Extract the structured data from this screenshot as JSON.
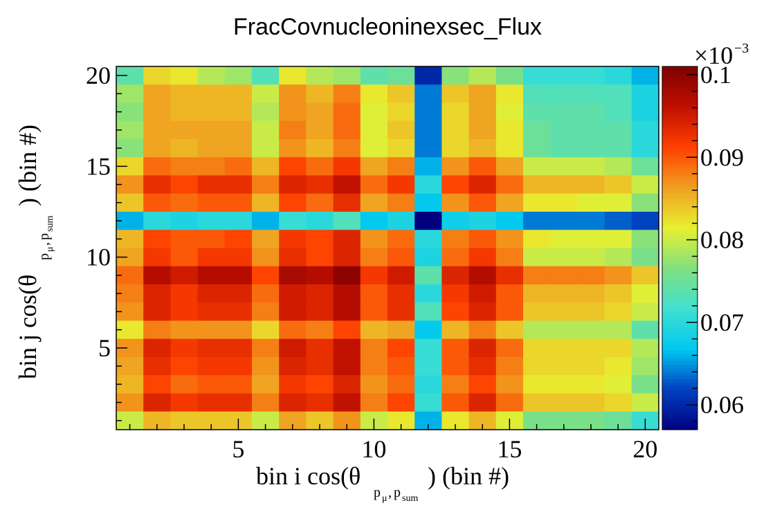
{
  "chart_data": {
    "type": "heatmap",
    "title": "FracCovnucleoninexsec_Flux",
    "xlabel": {
      "main": "bin i cos(θ",
      "sub": "p",
      "sub_mu": "μ",
      "sub_sep": ",",
      "sub2": "p",
      "sub2_sum": "sum",
      "tail": ") (bin #)"
    },
    "ylabel": {
      "main": "bin j cos(θ",
      "sub": "p",
      "sub_mu": "μ",
      "sub_sep": ",",
      "sub2": "p",
      "sub2_sum": "sum",
      "tail": ") (bin #)"
    },
    "x_range": [
      0.5,
      20.5
    ],
    "y_range": [
      0.5,
      20.5
    ],
    "x_ticks": [
      5,
      10,
      15,
      20
    ],
    "y_ticks": [
      5,
      10,
      15,
      20
    ],
    "z_range": [
      0.057,
      0.101
    ],
    "z_ticks": [
      0.06,
      0.07,
      0.08,
      0.09,
      0.1
    ],
    "z_tick_labels": [
      "0.06",
      "0.07",
      "0.08",
      "0.09",
      "0.1"
    ],
    "z_multiplier": "×10",
    "z_exponent": "−3",
    "colormap": [
      "#00007f",
      "#0040c0",
      "#00c8f0",
      "#40e0d0",
      "#80e080",
      "#e8f030",
      "#f0a020",
      "#ff4000",
      "#c01000",
      "#7f0000"
    ],
    "grid": false,
    "values": [
      [
        0.074,
        0.083,
        0.082,
        0.079,
        0.078,
        0.073,
        0.082,
        0.079,
        0.078,
        0.074,
        0.075,
        0.06,
        0.077,
        0.079,
        0.076,
        0.071,
        0.071,
        0.071,
        0.07,
        0.066
      ],
      [
        0.078,
        0.086,
        0.085,
        0.085,
        0.085,
        0.08,
        0.087,
        0.085,
        0.088,
        0.082,
        0.084,
        0.064,
        0.084,
        0.086,
        0.082,
        0.073,
        0.073,
        0.073,
        0.073,
        0.069
      ],
      [
        0.077,
        0.086,
        0.085,
        0.085,
        0.085,
        0.079,
        0.087,
        0.086,
        0.089,
        0.081,
        0.083,
        0.064,
        0.083,
        0.086,
        0.081,
        0.074,
        0.074,
        0.074,
        0.073,
        0.069
      ],
      [
        0.078,
        0.086,
        0.086,
        0.086,
        0.086,
        0.08,
        0.088,
        0.086,
        0.089,
        0.081,
        0.084,
        0.064,
        0.083,
        0.086,
        0.082,
        0.075,
        0.074,
        0.074,
        0.074,
        0.07
      ],
      [
        0.077,
        0.086,
        0.085,
        0.086,
        0.086,
        0.08,
        0.087,
        0.085,
        0.088,
        0.081,
        0.083,
        0.064,
        0.083,
        0.085,
        0.082,
        0.075,
        0.074,
        0.074,
        0.074,
        0.07
      ],
      [
        0.083,
        0.089,
        0.088,
        0.088,
        0.089,
        0.085,
        0.091,
        0.089,
        0.092,
        0.086,
        0.088,
        0.066,
        0.087,
        0.09,
        0.086,
        0.08,
        0.08,
        0.08,
        0.079,
        0.075
      ],
      [
        0.087,
        0.093,
        0.091,
        0.093,
        0.093,
        0.088,
        0.094,
        0.093,
        0.096,
        0.089,
        0.092,
        0.07,
        0.091,
        0.094,
        0.089,
        0.085,
        0.085,
        0.085,
        0.084,
        0.08
      ],
      [
        0.084,
        0.09,
        0.089,
        0.09,
        0.09,
        0.085,
        0.091,
        0.089,
        0.093,
        0.086,
        0.088,
        0.067,
        0.087,
        0.09,
        0.086,
        0.082,
        0.082,
        0.081,
        0.081,
        0.077
      ],
      [
        0.066,
        0.07,
        0.069,
        0.07,
        0.07,
        0.066,
        0.071,
        0.07,
        0.073,
        0.067,
        0.069,
        0.057,
        0.068,
        0.069,
        0.067,
        0.064,
        0.064,
        0.064,
        0.063,
        0.062
      ],
      [
        0.085,
        0.091,
        0.09,
        0.09,
        0.091,
        0.086,
        0.092,
        0.091,
        0.094,
        0.087,
        0.089,
        0.07,
        0.088,
        0.09,
        0.087,
        0.082,
        0.081,
        0.081,
        0.081,
        0.077
      ],
      [
        0.086,
        0.092,
        0.09,
        0.092,
        0.092,
        0.087,
        0.093,
        0.091,
        0.094,
        0.088,
        0.09,
        0.069,
        0.089,
        0.092,
        0.088,
        0.08,
        0.08,
        0.08,
        0.079,
        0.076
      ],
      [
        0.089,
        0.097,
        0.095,
        0.097,
        0.097,
        0.091,
        0.098,
        0.097,
        0.1,
        0.092,
        0.095,
        0.074,
        0.094,
        0.097,
        0.093,
        0.088,
        0.088,
        0.088,
        0.087,
        0.084
      ],
      [
        0.088,
        0.094,
        0.092,
        0.094,
        0.094,
        0.089,
        0.095,
        0.094,
        0.097,
        0.09,
        0.093,
        0.07,
        0.092,
        0.095,
        0.09,
        0.085,
        0.085,
        0.085,
        0.084,
        0.081
      ],
      [
        0.087,
        0.094,
        0.092,
        0.093,
        0.093,
        0.088,
        0.095,
        0.094,
        0.097,
        0.09,
        0.093,
        0.073,
        0.091,
        0.094,
        0.09,
        0.084,
        0.084,
        0.084,
        0.083,
        0.08
      ],
      [
        0.082,
        0.088,
        0.087,
        0.087,
        0.087,
        0.083,
        0.089,
        0.088,
        0.091,
        0.085,
        0.086,
        0.067,
        0.085,
        0.088,
        0.084,
        0.079,
        0.079,
        0.079,
        0.079,
        0.074
      ],
      [
        0.087,
        0.094,
        0.092,
        0.093,
        0.093,
        0.088,
        0.095,
        0.093,
        0.096,
        0.088,
        0.091,
        0.071,
        0.09,
        0.094,
        0.089,
        0.083,
        0.083,
        0.083,
        0.083,
        0.079
      ],
      [
        0.086,
        0.093,
        0.091,
        0.092,
        0.092,
        0.087,
        0.094,
        0.093,
        0.096,
        0.088,
        0.09,
        0.071,
        0.09,
        0.093,
        0.088,
        0.083,
        0.083,
        0.083,
        0.082,
        0.078
      ],
      [
        0.085,
        0.091,
        0.089,
        0.09,
        0.09,
        0.086,
        0.092,
        0.091,
        0.094,
        0.087,
        0.089,
        0.07,
        0.088,
        0.091,
        0.087,
        0.082,
        0.082,
        0.082,
        0.081,
        0.076
      ],
      [
        0.087,
        0.094,
        0.092,
        0.093,
        0.093,
        0.088,
        0.094,
        0.093,
        0.096,
        0.088,
        0.091,
        0.071,
        0.09,
        0.094,
        0.089,
        0.084,
        0.084,
        0.084,
        0.083,
        0.08
      ],
      [
        0.08,
        0.085,
        0.084,
        0.084,
        0.084,
        0.08,
        0.086,
        0.084,
        0.087,
        0.08,
        0.082,
        0.066,
        0.082,
        0.085,
        0.081,
        0.076,
        0.076,
        0.076,
        0.075,
        0.071
      ]
    ]
  }
}
